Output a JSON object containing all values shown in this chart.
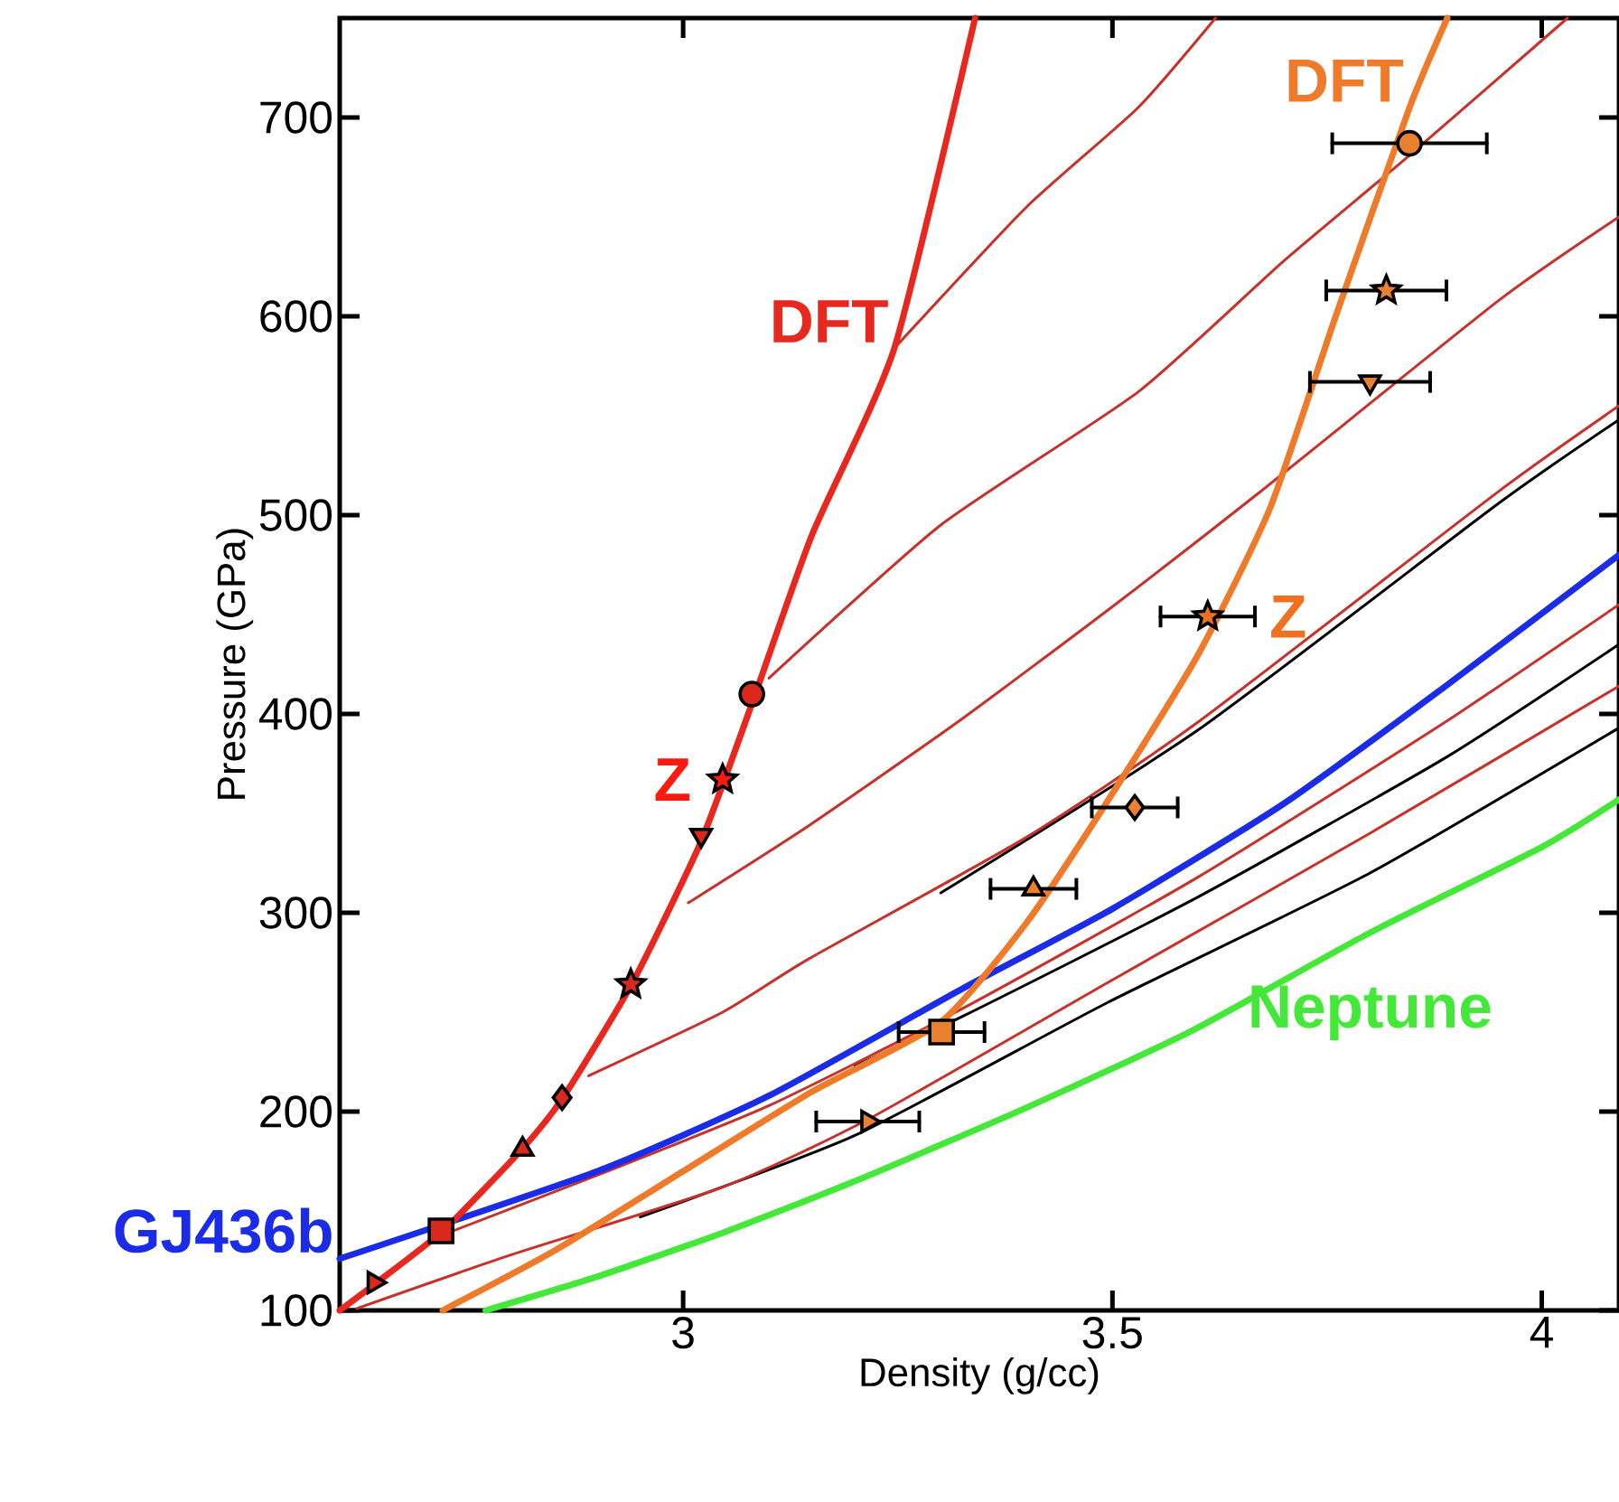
{
  "chart_data": {
    "type": "line",
    "xlabel": "Density (g/cc)",
    "ylabel": "Pressure (GPa)",
    "xlim": [
      2.6,
      4.09
    ],
    "ylim": [
      100,
      750
    ],
    "xticks": [
      3,
      3.5,
      4
    ],
    "yticks": [
      100,
      200,
      300,
      400,
      500,
      600,
      700
    ],
    "series": [
      {
        "color": "#c8302a",
        "x": [
          3.246,
          3.4,
          3.53,
          3.62
        ],
        "values": [
          584,
          655,
          705,
          750
        ]
      },
      {
        "color": "#c8302a",
        "x": [
          3.1,
          3.3,
          3.53,
          3.7,
          3.846,
          4.03
        ],
        "values": [
          418,
          495,
          562,
          628,
          681,
          750
        ]
      },
      {
        "color": "#c8302a",
        "x": [
          3.006,
          3.147,
          3.32,
          3.5,
          3.67,
          3.95,
          4.09
        ],
        "values": [
          305,
          344,
          396,
          454,
          511,
          608,
          650
        ]
      },
      {
        "color": "#000000",
        "x": [
          3.3,
          3.6,
          3.95,
          4.09
        ],
        "values": [
          310,
          392,
          506,
          548
        ]
      },
      {
        "color": "#c8302a",
        "x": [
          2.89,
          3.046,
          3.147,
          3.4,
          3.6,
          3.95,
          4.09
        ],
        "values": [
          218,
          250,
          277,
          338,
          396,
          512,
          555
        ]
      },
      {
        "color": "#000000",
        "x": [
          3.2,
          3.326,
          3.6,
          3.888,
          4.09
        ],
        "values": [
          223,
          248,
          308,
          378,
          435
        ]
      },
      {
        "color": "#c8302a",
        "x": [
          2.72,
          2.9,
          3.1,
          3.326,
          3.6,
          3.888,
          4.09
        ],
        "values": [
          138,
          168,
          203,
          252,
          318,
          396,
          455
        ]
      },
      {
        "color": "#000000",
        "x": [
          2.95,
          3.2,
          3.495,
          3.8,
          4.09
        ],
        "values": [
          147,
          188,
          255,
          320,
          393
        ]
      },
      {
        "color": "#c8302a",
        "x": [
          2.62,
          2.8,
          3.046,
          3.215,
          3.495,
          3.8,
          4.09
        ],
        "values": [
          101,
          128,
          162,
          196,
          265,
          340,
          414
        ]
      },
      {
        "name": "Neptune",
        "color": "#44e838",
        "x": [
          2.77,
          2.9,
          3.046,
          3.2,
          3.4,
          3.594,
          3.8,
          4.0,
          4.09
        ],
        "values": [
          100,
          117,
          139,
          165,
          202,
          241,
          290,
          333,
          357
        ]
      },
      {
        "name": "GJ436b",
        "color": "#1a2ce8",
        "x": [
          2.6,
          2.9,
          3.1,
          3.326,
          3.5,
          3.7,
          3.888,
          4.09
        ],
        "values": [
          126,
          170,
          208,
          262,
          302,
          355,
          414,
          480
        ]
      },
      {
        "name": "DFT",
        "color": "#ee7a2a",
        "x": [
          2.72,
          2.85,
          3.0,
          3.15,
          3.3,
          3.4,
          3.5,
          3.6,
          3.684,
          3.76,
          3.846,
          3.89
        ],
        "values": [
          100,
          130,
          170,
          210,
          245,
          295,
          360,
          430,
          504,
          600,
          705,
          750
        ]
      },
      {
        "name": "DFT",
        "color": "#e8281e",
        "x": [
          2.6,
          2.64,
          2.72,
          2.81,
          2.86,
          2.94,
          3.02,
          3.08,
          3.15,
          3.246,
          3.34
        ],
        "values": [
          100,
          113,
          140,
          180,
          207,
          264,
          335,
          405,
          490,
          584,
          750
        ]
      },
      {
        "type": "scatter",
        "color": "#d9281e",
        "marker": "triangle-right",
        "x": [
          2.64
        ],
        "values": [
          114
        ]
      },
      {
        "type": "scatter",
        "color": "#d9281e",
        "marker": "square",
        "x": [
          2.718
        ],
        "values": [
          140
        ]
      },
      {
        "type": "scatter",
        "color": "#d9281e",
        "marker": "triangle",
        "x": [
          2.813
        ],
        "values": [
          181
        ]
      },
      {
        "type": "scatter",
        "color": "#d9281e",
        "marker": "diamond",
        "x": [
          2.859
        ],
        "values": [
          207
        ]
      },
      {
        "type": "scatter",
        "color": "#d9281e",
        "marker": "star",
        "x": [
          2.939
        ],
        "values": [
          264
        ]
      },
      {
        "type": "scatter",
        "color": "#d9281e",
        "marker": "triangle-down",
        "x": [
          3.021
        ],
        "values": [
          339
        ]
      },
      {
        "type": "scatter",
        "name": "Z",
        "color": "#ff1a10",
        "marker": "star",
        "x": [
          3.046
        ],
        "values": [
          367
        ]
      },
      {
        "type": "scatter",
        "color": "#d9281e",
        "marker": "circle",
        "x": [
          3.08
        ],
        "values": [
          410
        ]
      },
      {
        "type": "scatter",
        "color": "#e8802f",
        "marker": "triangle-right",
        "x": [
          3.215
        ],
        "values": [
          195
        ],
        "xerrors": [
          0.06
        ]
      },
      {
        "type": "scatter",
        "color": "#e8802f",
        "marker": "square",
        "x": [
          3.301
        ],
        "values": [
          240
        ],
        "xerrors": [
          0.05
        ]
      },
      {
        "type": "scatter",
        "color": "#e8802f",
        "marker": "triangle",
        "x": [
          3.408
        ],
        "values": [
          312
        ],
        "xerrors": [
          0.05
        ]
      },
      {
        "type": "scatter",
        "color": "#e8802f",
        "marker": "diamond",
        "x": [
          3.526
        ],
        "values": [
          353
        ],
        "xerrors": [
          0.05
        ]
      },
      {
        "type": "scatter",
        "name": "Z",
        "color": "#f07020",
        "marker": "star",
        "x": [
          3.611
        ],
        "values": [
          449
        ],
        "xerrors": [
          0.055
        ]
      },
      {
        "type": "scatter",
        "color": "#e8802f",
        "marker": "triangle-down",
        "x": [
          3.8
        ],
        "values": [
          567
        ],
        "xerrors": [
          0.07
        ]
      },
      {
        "type": "scatter",
        "color": "#e8802f",
        "marker": "star",
        "x": [
          3.819
        ],
        "values": [
          613
        ],
        "xerrors": [
          0.07
        ]
      },
      {
        "type": "scatter",
        "color": "#e8802f",
        "marker": "circle",
        "x": [
          3.846
        ],
        "values": [
          687
        ],
        "xerrors": [
          0.09
        ]
      }
    ]
  }
}
